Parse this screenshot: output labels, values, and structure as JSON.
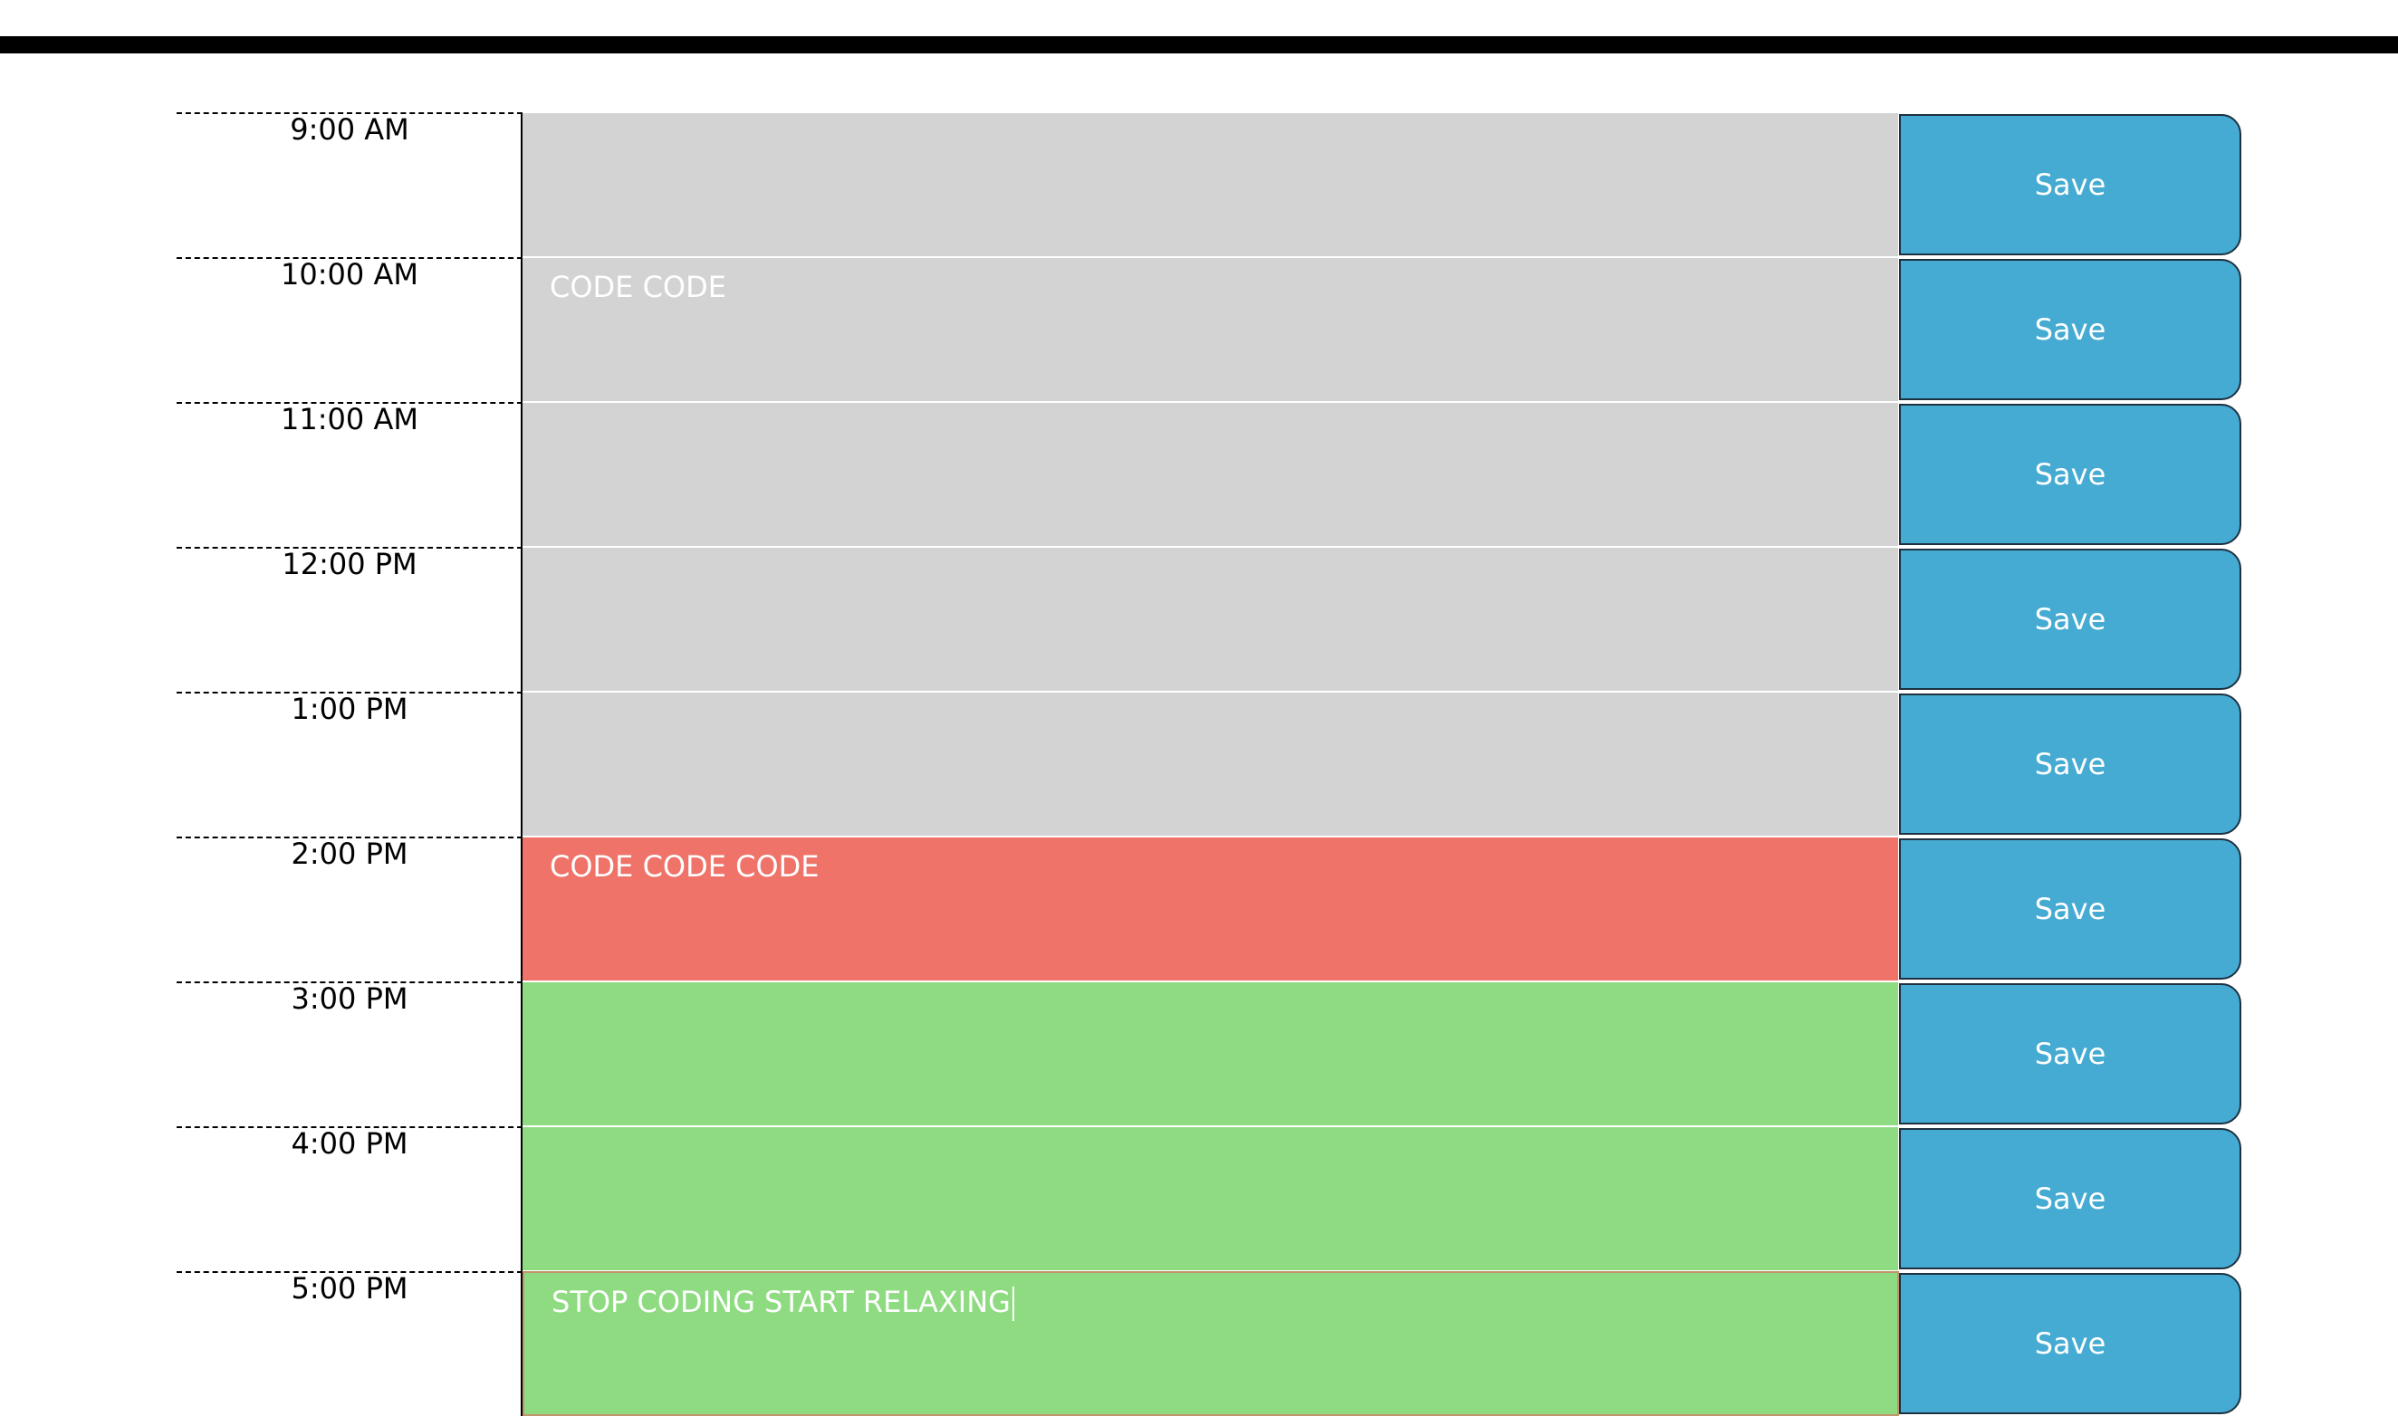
{
  "schedule": {
    "rows": [
      {
        "hour": "9:00 AM",
        "text": "",
        "state": "past",
        "save_label": "Save"
      },
      {
        "hour": "10:00 AM",
        "text": "CODE CODE",
        "state": "past",
        "save_label": "Save"
      },
      {
        "hour": "11:00 AM",
        "text": "",
        "state": "past",
        "save_label": "Save"
      },
      {
        "hour": "12:00 PM",
        "text": "",
        "state": "past",
        "save_label": "Save"
      },
      {
        "hour": "1:00 PM",
        "text": "",
        "state": "past",
        "save_label": "Save"
      },
      {
        "hour": "2:00 PM",
        "text": "CODE CODE CODE",
        "state": "present",
        "save_label": "Save"
      },
      {
        "hour": "3:00 PM",
        "text": "",
        "state": "future",
        "save_label": "Save"
      },
      {
        "hour": "4:00 PM",
        "text": "",
        "state": "future",
        "save_label": "Save"
      },
      {
        "hour": "5:00 PM",
        "text": "STOP CODING START RELAXING",
        "state": "future",
        "save_label": "Save"
      }
    ]
  },
  "colors": {
    "past": "#d3d3d3",
    "present": "#ef7369",
    "future": "#8fdb82",
    "save_button": "#45abd2"
  }
}
